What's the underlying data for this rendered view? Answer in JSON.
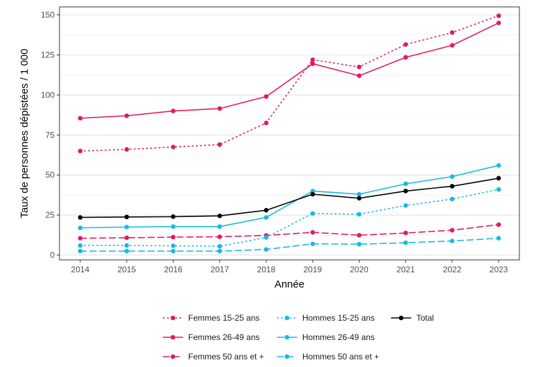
{
  "chart_data": {
    "type": "line",
    "title": "",
    "xlabel": "Année",
    "ylabel": "Taux de personnes dépistées / 1 000",
    "x": [
      2014,
      2015,
      2016,
      2017,
      2018,
      2019,
      2020,
      2021,
      2022,
      2023
    ],
    "x_tick_labels": [
      "2014",
      "2015",
      "2016",
      "2017",
      "2018",
      "2019",
      "2020",
      "2021",
      "2022",
      "2023"
    ],
    "ylim": [
      -3,
      155
    ],
    "y_ticks": [
      0,
      25,
      50,
      75,
      100,
      125,
      150
    ],
    "y_tick_labels": [
      "0",
      "25",
      "50",
      "75",
      "100",
      "125",
      "150"
    ],
    "grid": true,
    "legend_position": "bottom",
    "series": [
      {
        "name": "Femmes 15-25 ans",
        "color": "#e31a5f",
        "dash": "dotted",
        "values": [
          65,
          66,
          67.5,
          69,
          82.5,
          122,
          117.5,
          131.5,
          139,
          149.5
        ]
      },
      {
        "name": "Femmes 26-49 ans",
        "color": "#e31a5f",
        "dash": "solid",
        "values": [
          85.5,
          87,
          90,
          91.5,
          99,
          119.5,
          112,
          123.5,
          131,
          145
        ]
      },
      {
        "name": "Femmes 50 ans et +",
        "color": "#e31a5f",
        "dash": "dashed",
        "values": [
          10.5,
          10.8,
          11.2,
          11.4,
          12.3,
          14.2,
          12.4,
          13.8,
          15.5,
          19
        ]
      },
      {
        "name": "Hommes 15-25 ans",
        "color": "#19b8e6",
        "dash": "dotted",
        "values": [
          6,
          6,
          5.8,
          5.5,
          11,
          26,
          25.5,
          31,
          35,
          41
        ]
      },
      {
        "name": "Hommes 26-49 ans",
        "color": "#19b8e6",
        "dash": "solid",
        "values": [
          17,
          17.5,
          17.8,
          17.8,
          23.5,
          40,
          38,
          44.5,
          49,
          56
        ]
      },
      {
        "name": "Hommes 50 ans et +",
        "color": "#19b8e6",
        "dash": "dashed",
        "values": [
          2.5,
          2.5,
          2.5,
          2.5,
          3.5,
          7,
          6.8,
          7.7,
          8.8,
          10.5
        ]
      },
      {
        "name": "Total",
        "color": "#000000",
        "dash": "solid",
        "values": [
          23.5,
          23.8,
          24,
          24.5,
          28,
          38,
          35.5,
          40,
          43,
          48
        ]
      }
    ]
  }
}
